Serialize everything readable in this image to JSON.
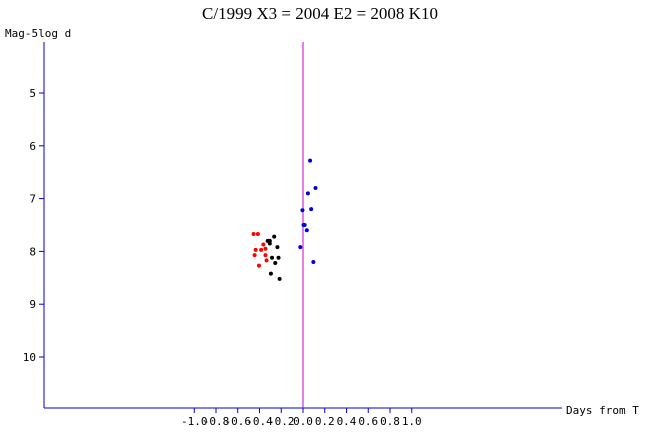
{
  "chart_data": {
    "type": "scatter",
    "title": "C/1999 X3 = 2004 E2 = 2008 K10",
    "ylabel": "Mag-5log d",
    "xlabel": "Days from T",
    "xlim": [
      -1.1,
      1.15
    ],
    "ylim": [
      11.0,
      4.0
    ],
    "y_inverted": true,
    "xticks": [
      -1.0,
      -0.8,
      -0.6,
      -0.4,
      -0.2,
      0.0,
      0.2,
      0.4,
      0.6,
      0.8,
      1.0
    ],
    "xtick_labels": [
      "-1.0",
      "-0.8",
      "-0.6",
      "-0.4",
      "-0.2",
      "0.0",
      "0.2",
      "0.4",
      "0.6",
      "0.8",
      "1.0"
    ],
    "yticks": [
      5,
      6,
      7,
      8,
      9,
      10
    ],
    "ytick_labels": [
      "5",
      "6",
      "7",
      "8",
      "9",
      "10"
    ],
    "grid": false,
    "legend": false,
    "reference_lines": [
      {
        "orientation": "vertical",
        "x": 0.0,
        "color": "#cc00cc"
      }
    ],
    "series": [
      {
        "color": "#ff0000",
        "points": [
          [
            -0.455,
            7.67
          ],
          [
            -0.415,
            7.67
          ],
          [
            -0.435,
            7.97
          ],
          [
            -0.445,
            8.07
          ],
          [
            -0.405,
            8.27
          ],
          [
            -0.385,
            7.97
          ],
          [
            -0.365,
            7.87
          ],
          [
            -0.345,
            8.07
          ],
          [
            -0.335,
            8.17
          ],
          [
            -0.345,
            7.95
          ],
          [
            -0.315,
            7.8
          ]
        ]
      },
      {
        "color": "#000000",
        "points": [
          [
            -0.325,
            7.8
          ],
          [
            -0.305,
            7.8
          ],
          [
            -0.305,
            7.85
          ],
          [
            -0.265,
            7.72
          ],
          [
            -0.235,
            7.92
          ],
          [
            -0.285,
            8.12
          ],
          [
            -0.255,
            8.22
          ],
          [
            -0.225,
            8.12
          ],
          [
            -0.295,
            8.42
          ],
          [
            -0.215,
            8.52
          ]
        ]
      },
      {
        "color": "#0000dd",
        "points": [
          [
            0.065,
            6.28
          ],
          [
            0.115,
            6.8
          ],
          [
            0.045,
            6.9
          ],
          [
            0.075,
            7.2
          ],
          [
            -0.005,
            7.22
          ],
          [
            0.005,
            7.5
          ],
          [
            0.015,
            7.5
          ],
          [
            0.035,
            7.6
          ],
          [
            -0.025,
            7.92
          ],
          [
            0.095,
            8.2
          ]
        ]
      }
    ]
  }
}
